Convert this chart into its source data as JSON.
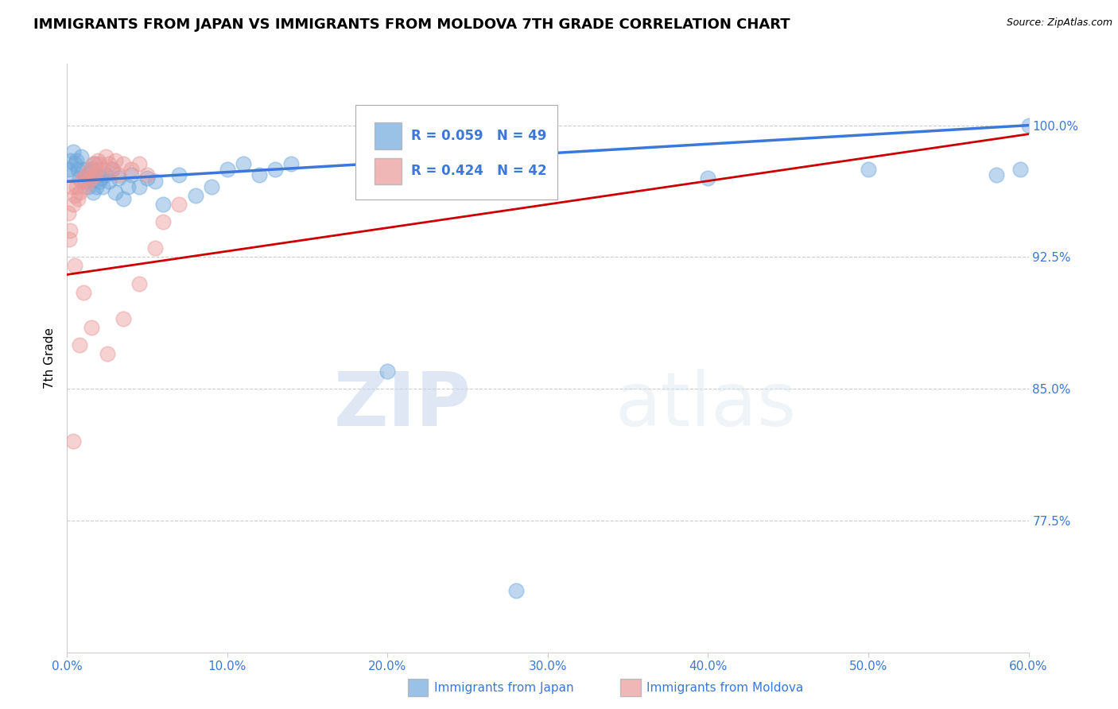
{
  "title": "IMMIGRANTS FROM JAPAN VS IMMIGRANTS FROM MOLDOVA 7TH GRADE CORRELATION CHART",
  "source": "Source: ZipAtlas.com",
  "ylabel": "7th Grade",
  "x_tick_labels": [
    "0.0%",
    "10.0%",
    "20.0%",
    "30.0%",
    "40.0%",
    "50.0%",
    "60.0%"
  ],
  "x_tick_values": [
    0.0,
    10.0,
    20.0,
    30.0,
    40.0,
    50.0,
    60.0
  ],
  "y_tick_labels": [
    "77.5%",
    "85.0%",
    "92.5%",
    "100.0%"
  ],
  "y_tick_values": [
    77.5,
    85.0,
    92.5,
    100.0
  ],
  "xlim": [
    0.0,
    60.0
  ],
  "ylim": [
    70.0,
    103.5
  ],
  "legend_japan": "Immigrants from Japan",
  "legend_moldova": "Immigrants from Moldova",
  "R_japan": 0.059,
  "N_japan": 49,
  "R_moldova": 0.424,
  "N_moldova": 42,
  "japan_color": "#6fa8dc",
  "moldova_color": "#ea9999",
  "japan_line_color": "#3c78d8",
  "moldova_line_color": "#cc0000",
  "axis_color": "#3c78d8",
  "grid_color": "#aaaaaa",
  "watermark_zip": "ZIP",
  "watermark_atlas": "atlas",
  "japan_x": [
    0.1,
    0.2,
    0.3,
    0.4,
    0.5,
    0.6,
    0.7,
    0.8,
    0.9,
    1.0,
    1.1,
    1.2,
    1.3,
    1.4,
    1.5,
    1.6,
    1.7,
    1.8,
    1.9,
    2.0,
    2.1,
    2.2,
    2.4,
    2.6,
    2.8,
    3.0,
    3.2,
    3.5,
    3.8,
    4.0,
    4.5,
    5.0,
    5.5,
    6.0,
    7.0,
    8.0,
    9.0,
    10.0,
    11.0,
    12.0,
    13.0,
    14.0,
    20.0,
    28.0,
    40.0,
    50.0,
    58.0,
    59.5,
    60.0
  ],
  "japan_y": [
    97.5,
    98.0,
    97.2,
    98.5,
    97.8,
    98.0,
    97.5,
    97.0,
    98.2,
    97.5,
    96.8,
    97.2,
    96.5,
    97.0,
    97.5,
    96.2,
    97.8,
    96.5,
    97.2,
    96.8,
    97.0,
    96.5,
    97.2,
    96.8,
    97.5,
    96.2,
    97.0,
    95.8,
    96.5,
    97.2,
    96.5,
    97.0,
    96.8,
    95.5,
    97.2,
    96.0,
    96.5,
    97.5,
    97.8,
    97.2,
    97.5,
    97.8,
    86.0,
    73.5,
    97.0,
    97.5,
    97.2,
    97.5,
    100.0
  ],
  "moldova_x": [
    0.1,
    0.2,
    0.3,
    0.4,
    0.5,
    0.6,
    0.7,
    0.8,
    0.9,
    1.0,
    1.1,
    1.2,
    1.3,
    1.4,
    1.5,
    1.6,
    1.7,
    1.8,
    1.9,
    2.0,
    2.2,
    2.4,
    2.6,
    2.8,
    3.0,
    3.2,
    3.5,
    4.0,
    4.5,
    5.0,
    0.15,
    0.5,
    1.0,
    1.5,
    2.5,
    3.5,
    4.5,
    5.5,
    6.0,
    7.0,
    0.4,
    0.8
  ],
  "moldova_y": [
    95.0,
    94.0,
    96.5,
    95.5,
    96.0,
    96.5,
    95.8,
    96.2,
    96.8,
    97.0,
    96.5,
    97.2,
    96.8,
    97.5,
    97.0,
    97.8,
    97.2,
    97.5,
    98.0,
    97.8,
    97.5,
    98.2,
    97.8,
    97.5,
    98.0,
    97.2,
    97.8,
    97.5,
    97.8,
    97.2,
    93.5,
    92.0,
    90.5,
    88.5,
    87.0,
    89.0,
    91.0,
    93.0,
    94.5,
    95.5,
    82.0,
    87.5
  ]
}
